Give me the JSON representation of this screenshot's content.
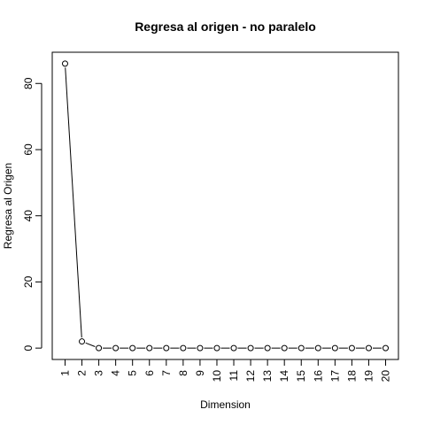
{
  "chart_data": {
    "type": "line",
    "title": "Regresa al origen - no paralelo",
    "xlabel": "Dimension",
    "ylabel": "Regresa al Origen",
    "x": [
      1,
      2,
      3,
      4,
      5,
      6,
      7,
      8,
      9,
      10,
      11,
      12,
      13,
      14,
      15,
      16,
      17,
      18,
      19,
      20
    ],
    "x_tick_labels": [
      "1",
      "2",
      "3",
      "4",
      "5",
      "6",
      "7",
      "8",
      "9",
      "10",
      "11",
      "12",
      "13",
      "14",
      "15",
      "16",
      "17",
      "18",
      "19",
      "20"
    ],
    "values": [
      86,
      2,
      0,
      0,
      0,
      0,
      0,
      0,
      0,
      0,
      0,
      0,
      0,
      0,
      0,
      0,
      0,
      0,
      0,
      0
    ],
    "y_ticks": [
      0,
      20,
      40,
      60,
      80
    ],
    "y_tick_labels": [
      "0",
      "20",
      "40",
      "60",
      "80"
    ],
    "xlim": [
      0.24,
      20.76
    ],
    "ylim": [
      -3.44,
      89.44
    ],
    "marker": "open-circle",
    "line_style": "solid-with-gaps",
    "grid": false,
    "legend": "none",
    "colors": {
      "line": "#000000",
      "background": "#ffffff"
    }
  }
}
